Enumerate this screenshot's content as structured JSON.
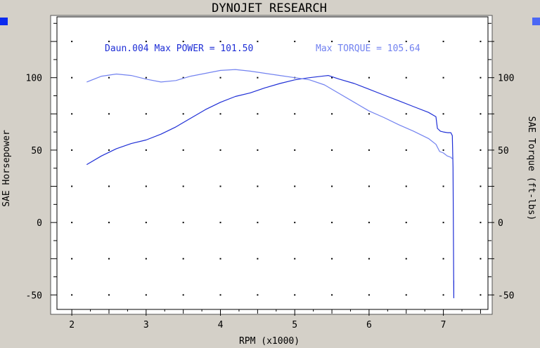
{
  "chart_data": {
    "type": "line",
    "title": "DYNOJET RESEARCH",
    "xlabel": "RPM (x1000)",
    "ylabel_left": "SAE Horsepower",
    "ylabel_right": "SAE Torque (ft-lbs)",
    "xlim": [
      1.8,
      7.6
    ],
    "ylim": [
      -60,
      142
    ],
    "x_ticks": [
      2,
      3,
      4,
      5,
      6,
      7
    ],
    "y_ticks": [
      -50,
      0,
      50,
      100
    ],
    "grid": "dotted",
    "annotations": {
      "power": "Daun.004 Max POWER = 101.50",
      "torque": "Max TORQUE = 105.64"
    },
    "series": [
      {
        "key": "power",
        "color": "#1f2fd6",
        "x": [
          2.2,
          2.4,
          2.6,
          2.8,
          3.0,
          3.2,
          3.4,
          3.6,
          3.8,
          4.0,
          4.2,
          4.4,
          4.6,
          4.8,
          5.0,
          5.2,
          5.4,
          5.45,
          5.6,
          5.8,
          6.0,
          6.2,
          6.4,
          6.6,
          6.8,
          6.9,
          6.92,
          6.96,
          7.0,
          7.06,
          7.1,
          7.12,
          7.13,
          7.14,
          7.14
        ],
        "values": [
          40,
          46,
          51,
          54.5,
          57,
          61,
          66,
          72,
          78,
          83,
          87,
          89.5,
          93,
          96,
          98.5,
          100,
          101.2,
          101.5,
          99,
          96,
          92,
          88,
          84,
          80,
          76,
          73,
          65,
          63,
          62.5,
          62,
          62,
          60,
          38,
          -52,
          -40
        ]
      },
      {
        "key": "torque",
        "color": "#7282f0",
        "x": [
          2.2,
          2.4,
          2.6,
          2.8,
          3.0,
          3.2,
          3.4,
          3.6,
          3.8,
          4.0,
          4.2,
          4.4,
          4.6,
          4.8,
          5.0,
          5.2,
          5.4,
          5.6,
          5.8,
          6.0,
          6.2,
          6.4,
          6.6,
          6.8,
          6.9,
          6.95,
          7.0,
          7.05,
          7.1,
          7.12
        ],
        "values": [
          97,
          101,
          102.5,
          101.5,
          99,
          97,
          98,
          101,
          103,
          105,
          105.64,
          104.5,
          103,
          101.5,
          100,
          98.5,
          95,
          89,
          83,
          77,
          72.5,
          67.5,
          63,
          58,
          54,
          49,
          48,
          46,
          45,
          44
        ]
      }
    ]
  },
  "markers": {
    "left_color": "#0a2af0",
    "right_color": "#4b67f5"
  }
}
